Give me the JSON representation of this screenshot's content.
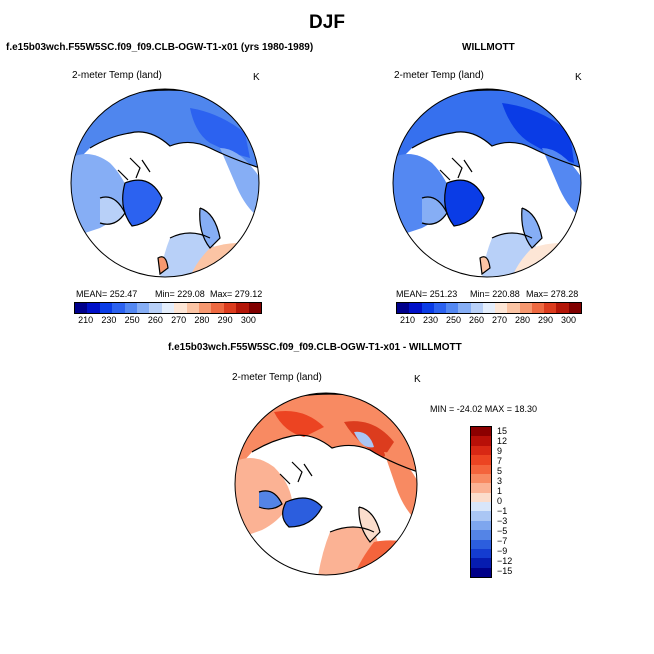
{
  "season": "DJF",
  "panel_left": {
    "header": "f.e15b03wch.F55W5SC.f09_f09.CLB-OGW-T1-x01 (yrs 1980-1989)",
    "variable": "2-meter Temp (land)",
    "units": "K",
    "stats": {
      "mean": "MEAN= 252.47",
      "min": "Min= 229.08",
      "max": "Max= 279.12"
    }
  },
  "panel_right": {
    "header": "WILLMOTT",
    "variable": "2-meter Temp (land)",
    "units": "K",
    "stats": {
      "mean": "MEAN= 251.23",
      "min": "Min= 220.88",
      "max": "Max= 278.28"
    }
  },
  "panel_diff": {
    "header": "f.e15b03wch.F55W5SC.f09_f09.CLB-OGW-T1-x01 - WILLMOTT",
    "variable": "2-meter Temp (land)",
    "units": "K",
    "stats": "MIN = -24.02  MAX = 18.30"
  },
  "abs_colorbar": {
    "ticks": [
      "210",
      "230",
      "250",
      "260",
      "270",
      "280",
      "290",
      "300"
    ],
    "colors": [
      "#00008c",
      "#0010c8",
      "#0a3ce6",
      "#2c62f0",
      "#5488f2",
      "#86aef5",
      "#b8d0f8",
      "#e4eefc",
      "#fde6d6",
      "#fbc4a4",
      "#f69870",
      "#ee6a42",
      "#dc3c1e",
      "#b41608",
      "#800000"
    ]
  },
  "diff_colorbar": {
    "ticks": [
      "15",
      "12",
      "9",
      "7",
      "5",
      "3",
      "1",
      "0",
      "−1",
      "−3",
      "−5",
      "−7",
      "−9",
      "−12",
      "−15"
    ],
    "colors": [
      "#8c0000",
      "#b81008",
      "#d82814",
      "#ec4422",
      "#f4643c",
      "#f88a62",
      "#fbb294",
      "#fbddcc",
      "#d8e6fa",
      "#aac6f4",
      "#7ea6ee",
      "#5484e6",
      "#2c5ede",
      "#143cd0",
      "#061cb0",
      "#000088"
    ]
  }
}
